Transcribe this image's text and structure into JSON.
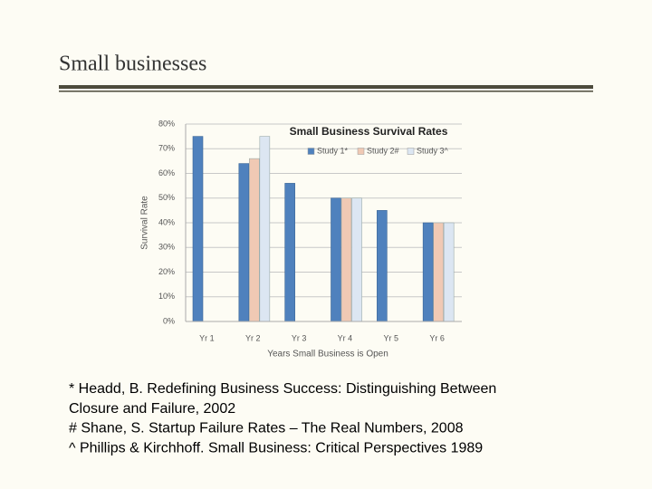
{
  "slide_title": "Small businesses",
  "chart_data": {
    "type": "bar",
    "title": "Small Business Survival Rates",
    "categories": [
      "Yr 1",
      "Yr 2",
      "Yr 3",
      "Yr 4",
      "Yr 5",
      "Yr 6"
    ],
    "series": [
      {
        "name": "Study 1*",
        "color": "#4f81bd",
        "values": [
          75,
          64,
          56,
          50,
          45,
          40
        ]
      },
      {
        "name": "Study 2#",
        "color": "#f0c9b4",
        "values": [
          null,
          66,
          null,
          50,
          null,
          40
        ]
      },
      {
        "name": "Study 3^",
        "color": "#dce6f2",
        "values": [
          null,
          75,
          null,
          50,
          null,
          40
        ]
      }
    ],
    "y_label": "Survival Rate",
    "x_label": "Years Small Business is Open",
    "ylim": [
      0,
      80
    ],
    "yticks": [
      {
        "value": 0,
        "label": "0%"
      },
      {
        "value": 10,
        "label": "10%"
      },
      {
        "value": 20,
        "label": "20%"
      },
      {
        "value": 30,
        "label": "30%"
      },
      {
        "value": 40,
        "label": "40%"
      },
      {
        "value": 50,
        "label": "50%"
      },
      {
        "value": 60,
        "label": "60%"
      },
      {
        "value": 70,
        "label": "70%"
      },
      {
        "value": 80,
        "label": "80%"
      }
    ],
    "grid": true,
    "legend": "top"
  },
  "references": [
    "* Headd, B. Redefining Business Success: Distinguishing Between",
    "Closure and Failure, 2002",
    "# Shane, S. Startup Failure Rates – The Real Numbers, 2008",
    "^ Phillips & Kirchhoff. Small Business: Critical Perspectives 1989"
  ]
}
